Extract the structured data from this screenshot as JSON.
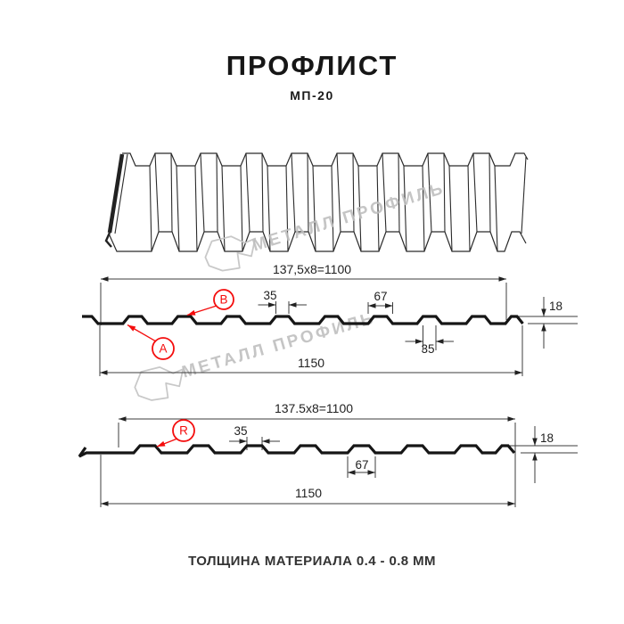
{
  "header": {
    "title": "ПРОФЛИСТ",
    "subtitle": "МП-20"
  },
  "watermark": {
    "text": "МЕТАЛЛ ПРОФИЛЬ"
  },
  "footer": {
    "text": "ТОЛЩИНА МАТЕРИАЛА 0.4 - 0.8 ММ"
  },
  "colors": {
    "accent_red": "#f40d0d",
    "line_black": "#161616",
    "dim_gray": "#3c3c3c",
    "watermark_gray": "#c3c3c3"
  },
  "drawing1": {
    "top_dim": "137,5x8=1100",
    "bottom_dim": "1150",
    "dim_top_35": "35",
    "dim_67": "67",
    "dim_18": "18",
    "dim_bottom_35": "35",
    "label_a": "A",
    "label_b": "B"
  },
  "drawing2": {
    "top_dim": "137.5x8=1100",
    "bottom_dim": "1150",
    "dim_35": "35",
    "dim_67": "67",
    "dim_18": "18",
    "label_r": "R"
  }
}
